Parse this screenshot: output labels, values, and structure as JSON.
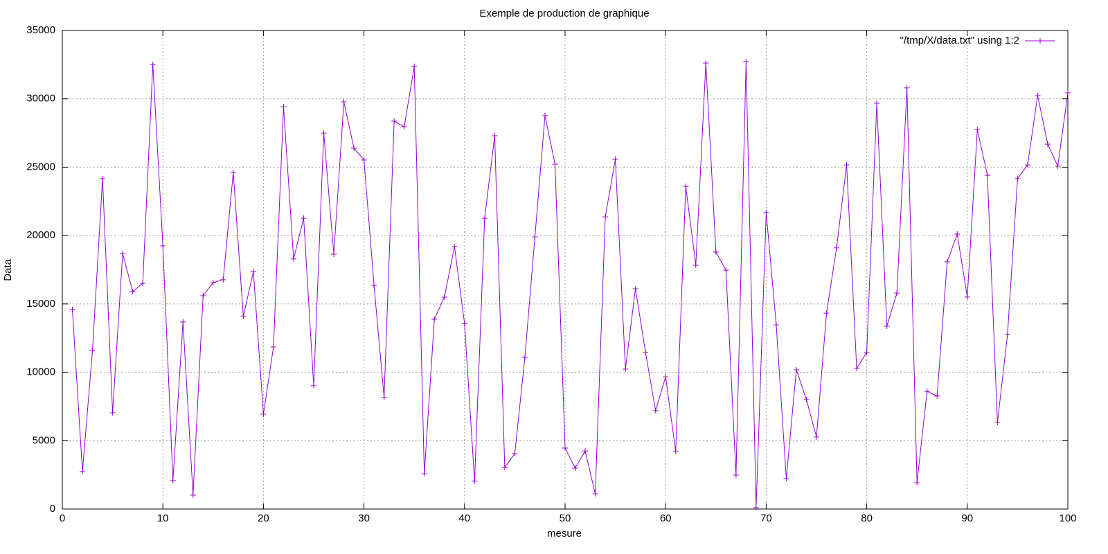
{
  "chart_data": {
    "type": "line",
    "title": "Exemple de production de graphique",
    "x_label": "mesure",
    "y_label": "Data",
    "x": [
      1,
      2,
      3,
      4,
      5,
      6,
      7,
      8,
      9,
      10,
      11,
      12,
      13,
      14,
      15,
      16,
      17,
      18,
      19,
      20,
      21,
      22,
      23,
      24,
      25,
      26,
      27,
      28,
      29,
      30,
      31,
      32,
      33,
      34,
      35,
      36,
      37,
      38,
      39,
      40,
      41,
      42,
      43,
      44,
      45,
      46,
      47,
      48,
      49,
      50,
      51,
      52,
      53,
      54,
      55,
      56,
      57,
      58,
      59,
      60,
      61,
      62,
      63,
      64,
      65,
      66,
      67,
      68,
      69,
      70,
      71,
      72,
      73,
      74,
      75,
      76,
      77,
      78,
      79,
      80,
      81,
      82,
      83,
      84,
      85,
      86,
      87,
      88,
      89,
      90,
      91,
      92,
      93,
      94,
      95,
      96,
      97,
      98,
      99,
      100
    ],
    "series": [
      {
        "name": "\"/tmp/X/data.txt\" using 1:2",
        "color": "#9400d3",
        "values": [
          14590,
          2740,
          11600,
          24160,
          7040,
          18690,
          15900,
          16510,
          32520,
          19250,
          2080,
          13680,
          1010,
          15600,
          16560,
          16770,
          24620,
          14080,
          17370,
          6940,
          11850,
          29430,
          18290,
          21270,
          9020,
          27500,
          18640,
          29780,
          26390,
          25530,
          16360,
          8150,
          28370,
          27960,
          32370,
          2580,
          13880,
          15500,
          19200,
          13570,
          2030,
          21270,
          27300,
          3040,
          4050,
          11090,
          19900,
          28770,
          25220,
          4460,
          2990,
          4250,
          1110,
          21370,
          25580,
          10230,
          16110,
          11450,
          7190,
          9670,
          4200,
          23600,
          17830,
          32620,
          18790,
          17470,
          2480,
          32720,
          100,
          21680,
          13470,
          2230,
          10180,
          8000,
          5270,
          14330,
          19100,
          25170,
          10280,
          11450,
          29680,
          13370,
          15800,
          30800,
          1920,
          8610,
          8260,
          18080,
          20110,
          15500,
          27760,
          24410,
          6330,
          12760,
          24160,
          25170,
          30240,
          26690,
          25070,
          30440
        ]
      }
    ],
    "xlim": [
      0,
      100
    ],
    "xticks": [
      0,
      10,
      20,
      30,
      40,
      50,
      60,
      70,
      80,
      90,
      100
    ],
    "ylim": [
      0,
      35000
    ],
    "yticks": [
      0,
      5000,
      10000,
      15000,
      20000,
      25000,
      30000,
      35000
    ],
    "grid": true,
    "legend": "top-right"
  }
}
